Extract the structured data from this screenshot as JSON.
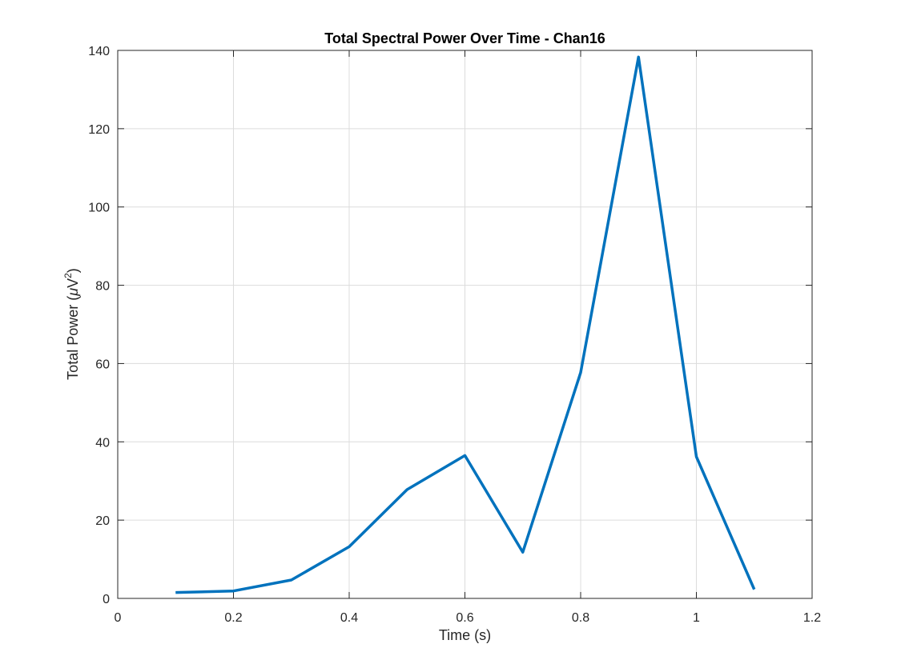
{
  "chart_data": {
    "type": "line",
    "title": "Total Spectral Power Over Time - Chan16",
    "xlabel": "Time (s)",
    "ylabel": {
      "prefix": "Total Power (",
      "mu": "μ",
      "unit": "V",
      "sup": "2",
      "suffix": ")"
    },
    "xlim": [
      0,
      1.2
    ],
    "ylim": [
      0,
      140
    ],
    "xticks": [
      0,
      0.2,
      0.4,
      0.6,
      0.8,
      1,
      1.2
    ],
    "xtick_labels": [
      "0",
      "0.2",
      "0.4",
      "0.6",
      "0.8",
      "1",
      "1.2"
    ],
    "yticks": [
      0,
      20,
      40,
      60,
      80,
      100,
      120,
      140
    ],
    "ytick_labels": [
      "0",
      "20",
      "40",
      "60",
      "80",
      "100",
      "120",
      "140"
    ],
    "grid": true,
    "series": [
      {
        "color": "#0072BD",
        "x": [
          0.1,
          0.2,
          0.3,
          0.4,
          0.5,
          0.6,
          0.7,
          0.8,
          0.9,
          1.0,
          1.1
        ],
        "y": [
          1.5,
          1.9,
          4.7,
          13.2,
          27.8,
          36.5,
          11.8,
          57.7,
          138.3,
          36.2,
          2.3
        ]
      }
    ]
  }
}
